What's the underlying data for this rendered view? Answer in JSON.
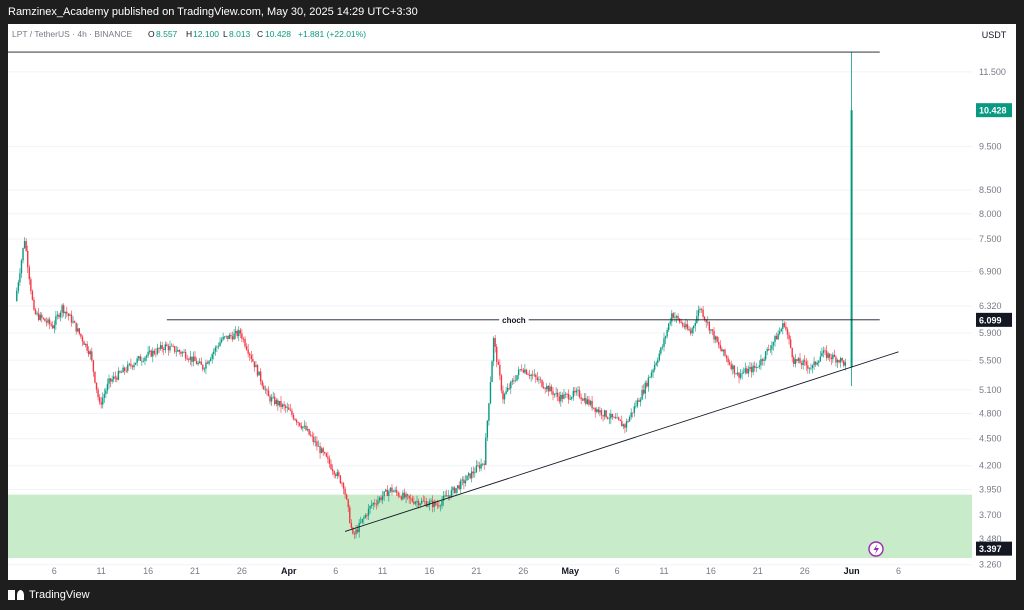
{
  "header": {
    "publisher_line": "Ramzinex_Academy published on TradingView.com, May 30, 2025 14:29 UTC+3:30"
  },
  "footer": {
    "brand": "TradingView"
  },
  "legend": {
    "symbol": "LPT / TetherUS · 4h · BINANCE",
    "o_key": "O",
    "o_val": "8.557",
    "h_key": "H",
    "h_val": "12.100",
    "l_key": "L",
    "l_val": "8.013",
    "c_key": "C",
    "c_val": "10.428",
    "change": "+1.881 (+22.01%)"
  },
  "colors": {
    "up": "#089981",
    "down": "#f23645",
    "zone": "#c8ebc9",
    "last_price_badge": "#089981",
    "badge_dark": "#131722",
    "line": "#131722",
    "axis_text": "#787b86",
    "grid": "#f0f3fa"
  },
  "chart_data": {
    "type": "candlestick",
    "symbol": "LPT/USDT",
    "timeframe": "4h",
    "exchange": "BINANCE",
    "y_axis_unit": "USDT",
    "y_scale": "log",
    "y_range": [
      3.2,
      12.9
    ],
    "y_ticks": [
      "11.500",
      "9.500",
      "8.500",
      "8.000",
      "7.500",
      "6.900",
      "6.320",
      "5.900",
      "5.500",
      "5.100",
      "4.800",
      "4.500",
      "4.200",
      "3.950",
      "3.700",
      "3.480",
      "3.260"
    ],
    "x_ticks": [
      "6",
      "11",
      "16",
      "21",
      "26",
      "Apr",
      "6",
      "11",
      "16",
      "21",
      "26",
      "May",
      "6",
      "11",
      "16",
      "21",
      "26",
      "Jun",
      "6"
    ],
    "last_price": "10.428",
    "price_labels": [
      "6.099",
      "3.397"
    ],
    "annotation": "choch",
    "price_path": [
      {
        "date": "2025-03-02",
        "price": 6.4
      },
      {
        "date": "2025-03-03",
        "price": 7.5
      },
      {
        "date": "2025-03-04",
        "price": 6.2
      },
      {
        "date": "2025-03-06",
        "price": 6.0
      },
      {
        "date": "2025-03-07",
        "price": 6.3
      },
      {
        "date": "2025-03-08",
        "price": 6.1
      },
      {
        "date": "2025-03-10",
        "price": 5.6
      },
      {
        "date": "2025-03-11",
        "price": 4.9
      },
      {
        "date": "2025-03-12",
        "price": 5.2
      },
      {
        "date": "2025-03-15",
        "price": 5.5
      },
      {
        "date": "2025-03-18",
        "price": 5.7
      },
      {
        "date": "2025-03-20",
        "price": 5.6
      },
      {
        "date": "2025-03-22",
        "price": 5.4
      },
      {
        "date": "2025-03-24",
        "price": 5.8
      },
      {
        "date": "2025-03-26",
        "price": 5.9
      },
      {
        "date": "2025-03-27",
        "price": 5.6
      },
      {
        "date": "2025-03-29",
        "price": 5.0
      },
      {
        "date": "2025-03-31",
        "price": 4.85
      },
      {
        "date": "2025-04-02",
        "price": 4.6
      },
      {
        "date": "2025-04-04",
        "price": 4.3
      },
      {
        "date": "2025-04-06",
        "price": 4.0
      },
      {
        "date": "2025-04-07",
        "price": 3.5
      },
      {
        "date": "2025-04-09",
        "price": 3.8
      },
      {
        "date": "2025-04-11",
        "price": 3.95
      },
      {
        "date": "2025-04-13",
        "price": 3.85
      },
      {
        "date": "2025-04-16",
        "price": 3.8
      },
      {
        "date": "2025-04-19",
        "price": 4.05
      },
      {
        "date": "2025-04-21",
        "price": 4.25
      },
      {
        "date": "2025-04-22",
        "price": 5.8
      },
      {
        "date": "2025-04-23",
        "price": 5.0
      },
      {
        "date": "2025-04-25",
        "price": 5.4
      },
      {
        "date": "2025-04-27",
        "price": 5.2
      },
      {
        "date": "2025-04-29",
        "price": 5.0
      },
      {
        "date": "2025-05-01",
        "price": 5.05
      },
      {
        "date": "2025-05-03",
        "price": 4.85
      },
      {
        "date": "2025-05-06",
        "price": 4.65
      },
      {
        "date": "2025-05-08",
        "price": 5.1
      },
      {
        "date": "2025-05-10",
        "price": 5.7
      },
      {
        "date": "2025-05-11",
        "price": 6.2
      },
      {
        "date": "2025-05-13",
        "price": 5.9
      },
      {
        "date": "2025-05-14",
        "price": 6.3
      },
      {
        "date": "2025-05-16",
        "price": 5.7
      },
      {
        "date": "2025-05-18",
        "price": 5.3
      },
      {
        "date": "2025-05-20",
        "price": 5.4
      },
      {
        "date": "2025-05-22",
        "price": 5.8
      },
      {
        "date": "2025-05-23",
        "price": 6.05
      },
      {
        "date": "2025-05-24",
        "price": 5.5
      },
      {
        "date": "2025-05-26",
        "price": 5.4
      },
      {
        "date": "2025-05-27",
        "price": 5.6
      },
      {
        "date": "2025-05-29",
        "price": 5.5
      },
      {
        "date": "2025-05-29T20:00",
        "price": 5.4
      },
      {
        "date": "2025-05-30",
        "price": 10.428
      }
    ],
    "horizontal_lines": [
      {
        "price": 6.099,
        "from": "2025-03-18",
        "to": "2025-06-02",
        "label": "choch"
      },
      {
        "price": 12.1,
        "from": "2025-03-01",
        "to": "2025-06-02"
      }
    ],
    "trendline": {
      "from": {
        "date": "2025-04-06",
        "price": 3.55
      },
      "to": {
        "date": "2025-06-04",
        "price": 5.62
      }
    },
    "zone": {
      "from_price": 3.397,
      "to_price": 3.9
    }
  }
}
